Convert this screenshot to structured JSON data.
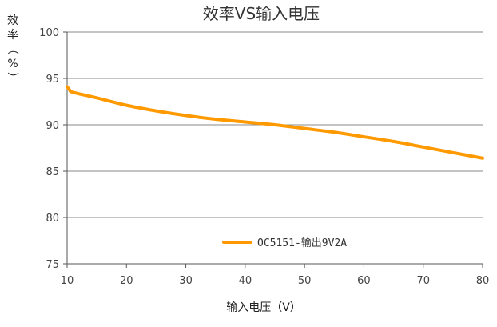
{
  "chart_data": {
    "type": "line",
    "title": "效率VS输入电压",
    "xlabel": "输入电压（V）",
    "ylabel": "效率（%）",
    "xlim": [
      10,
      80
    ],
    "ylim": [
      75,
      100
    ],
    "xticks": [
      "10",
      "20",
      "30",
      "40",
      "50",
      "60",
      "70",
      "80"
    ],
    "yticks": [
      "75",
      "80",
      "85",
      "90",
      "95",
      "100"
    ],
    "grid": "horizontal",
    "legend_position": "bottom-center",
    "series": [
      {
        "name": "OC5151-输出9V2A",
        "color": "#FF9900",
        "x": [
          10,
          10.5,
          11,
          15,
          20,
          25,
          30,
          35,
          40,
          45,
          50,
          55,
          60,
          65,
          70,
          75,
          80
        ],
        "y": [
          94.1,
          93.7,
          93.5,
          92.9,
          92.1,
          91.5,
          91.0,
          90.6,
          90.3,
          90.0,
          89.6,
          89.2,
          88.7,
          88.2,
          87.6,
          87.0,
          86.4
        ]
      }
    ]
  },
  "colors": {
    "gridline": "#888888",
    "axis": "#555555",
    "background": "#ffffff"
  }
}
